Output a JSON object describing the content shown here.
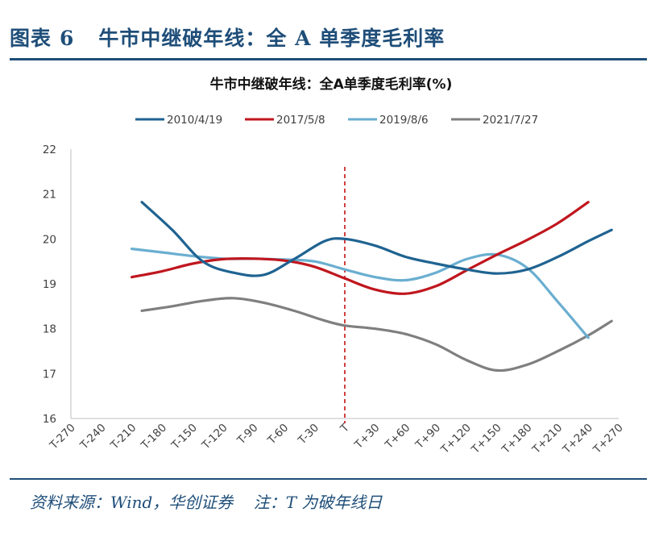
{
  "figure": {
    "label": "图表",
    "number": "6",
    "title": "牛市中继破年线：全 A 单季度毛利率"
  },
  "source_note": "资料来源：Wind，华创证券    注：T 为破年线日",
  "colors": {
    "frame": "#1f4e79",
    "marker": "#c00000"
  },
  "chart_data": {
    "type": "line",
    "title": "牛市中继破年线：全A单季度毛利率(%)",
    "xlabel": "",
    "ylabel": "",
    "categories": [
      "T-270",
      "T-240",
      "T-210",
      "T-180",
      "T-150",
      "T-120",
      "T-90",
      "T-60",
      "T-30",
      "T",
      "T+30",
      "T+60",
      "T+90",
      "T+120",
      "T+150",
      "T+180",
      "T+210",
      "T+240",
      "T+270"
    ],
    "x": [
      -270,
      -240,
      -210,
      -180,
      -150,
      -120,
      -90,
      -60,
      -30,
      0,
      30,
      60,
      90,
      120,
      150,
      180,
      210,
      240,
      270
    ],
    "xlim": [
      -270,
      270
    ],
    "ylim": [
      16,
      22
    ],
    "yticks": [
      16,
      17,
      18,
      19,
      20,
      21,
      22
    ],
    "ytick_labels": [
      "16",
      "17",
      "18",
      "19",
      "20",
      "21",
      "22"
    ],
    "grid": false,
    "legend_position": "top",
    "reference_line": {
      "x": 0,
      "style": "dashed",
      "color": "#c00000"
    },
    "series": [
      {
        "name": "2010/4/19",
        "color": "#1f6391",
        "points": [
          [
            -200,
            20.82
          ],
          [
            -170,
            20.2
          ],
          [
            -140,
            19.5
          ],
          [
            -110,
            19.25
          ],
          [
            -80,
            19.2
          ],
          [
            -50,
            19.55
          ],
          [
            -20,
            19.95
          ],
          [
            0,
            20.0
          ],
          [
            30,
            19.85
          ],
          [
            60,
            19.6
          ],
          [
            90,
            19.45
          ],
          [
            120,
            19.32
          ],
          [
            150,
            19.23
          ],
          [
            180,
            19.32
          ],
          [
            210,
            19.6
          ],
          [
            240,
            19.95
          ],
          [
            263,
            20.2
          ]
        ]
      },
      {
        "name": "2017/5/8",
        "color": "#c0161e",
        "points": [
          [
            -210,
            19.15
          ],
          [
            -180,
            19.28
          ],
          [
            -150,
            19.45
          ],
          [
            -120,
            19.55
          ],
          [
            -90,
            19.56
          ],
          [
            -60,
            19.52
          ],
          [
            -30,
            19.38
          ],
          [
            0,
            19.12
          ],
          [
            30,
            18.87
          ],
          [
            60,
            18.78
          ],
          [
            90,
            18.95
          ],
          [
            120,
            19.3
          ],
          [
            150,
            19.65
          ],
          [
            180,
            19.98
          ],
          [
            210,
            20.35
          ],
          [
            240,
            20.82
          ]
        ]
      },
      {
        "name": "2019/8/6",
        "color": "#6aaed0",
        "points": [
          [
            -210,
            19.78
          ],
          [
            -180,
            19.7
          ],
          [
            -150,
            19.62
          ],
          [
            -120,
            19.56
          ],
          [
            -90,
            19.56
          ],
          [
            -60,
            19.54
          ],
          [
            -30,
            19.5
          ],
          [
            0,
            19.32
          ],
          [
            30,
            19.15
          ],
          [
            60,
            19.08
          ],
          [
            90,
            19.25
          ],
          [
            120,
            19.55
          ],
          [
            150,
            19.65
          ],
          [
            180,
            19.35
          ],
          [
            210,
            18.6
          ],
          [
            240,
            17.8
          ]
        ]
      },
      {
        "name": "2021/7/27",
        "color": "#7f7f7f",
        "points": [
          [
            -200,
            18.4
          ],
          [
            -170,
            18.5
          ],
          [
            -140,
            18.62
          ],
          [
            -110,
            18.68
          ],
          [
            -80,
            18.58
          ],
          [
            -50,
            18.4
          ],
          [
            -20,
            18.18
          ],
          [
            0,
            18.07
          ],
          [
            30,
            18.0
          ],
          [
            60,
            17.88
          ],
          [
            90,
            17.65
          ],
          [
            120,
            17.3
          ],
          [
            150,
            17.07
          ],
          [
            180,
            17.2
          ],
          [
            210,
            17.5
          ],
          [
            240,
            17.85
          ],
          [
            263,
            18.17
          ]
        ]
      }
    ]
  }
}
